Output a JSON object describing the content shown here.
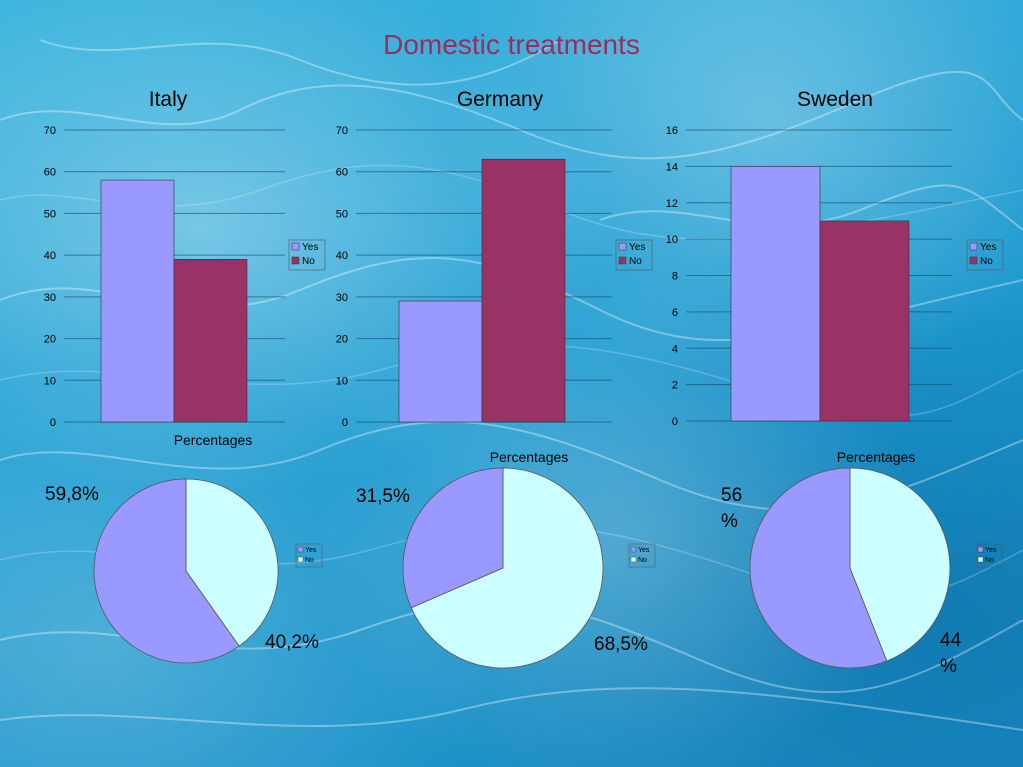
{
  "page_title": "Domestic treatments",
  "colors": {
    "yes_bar": "#9999ff",
    "no_bar": "#993366",
    "yes_pie": "#9999ff",
    "no_pie": "#ccffff",
    "title": "#9b2d5e"
  },
  "chart_data": [
    {
      "type": "bar",
      "title": "Italy",
      "categories": [
        "Yes",
        "No"
      ],
      "values": [
        58,
        39
      ],
      "ylim": [
        0,
        70
      ],
      "yticks": [
        0,
        10,
        20,
        30,
        40,
        50,
        60,
        70
      ],
      "legend": [
        "Yes",
        "No"
      ],
      "legend_position": "right",
      "grid": true
    },
    {
      "type": "bar",
      "title": "Germany",
      "categories": [
        "Yes",
        "No"
      ],
      "values": [
        29,
        63
      ],
      "ylim": [
        0,
        70
      ],
      "yticks": [
        0,
        10,
        20,
        30,
        40,
        50,
        60,
        70
      ],
      "legend": [
        "Yes",
        "No"
      ],
      "legend_position": "right",
      "grid": true
    },
    {
      "type": "bar",
      "title": "Sweden",
      "categories": [
        "Yes",
        "No"
      ],
      "values": [
        14,
        11
      ],
      "ylim": [
        0,
        16
      ],
      "yticks": [
        0,
        2,
        4,
        6,
        8,
        10,
        12,
        14,
        16
      ],
      "legend": [
        "Yes",
        "No"
      ],
      "legend_position": "right",
      "grid": true
    },
    {
      "type": "pie",
      "title": "Percentages",
      "categories": [
        "Yes",
        "No"
      ],
      "values": [
        59.8,
        40.2
      ],
      "labels": [
        "59,8%",
        "40,2%"
      ],
      "legend": [
        "Yes",
        "No"
      ],
      "legend_position": "right"
    },
    {
      "type": "pie",
      "title": "Percentages",
      "categories": [
        "Yes",
        "No"
      ],
      "values": [
        31.5,
        68.5
      ],
      "labels": [
        "31,5%",
        "68,5%"
      ],
      "legend": [
        "Yes",
        "No"
      ],
      "legend_position": "right"
    },
    {
      "type": "pie",
      "title": "Percentages",
      "categories": [
        "Yes",
        "No"
      ],
      "values": [
        56,
        44
      ],
      "labels": [
        "56\n%",
        "44\n%"
      ],
      "legend": [
        "Yes",
        "No"
      ],
      "legend_position": "right"
    }
  ]
}
